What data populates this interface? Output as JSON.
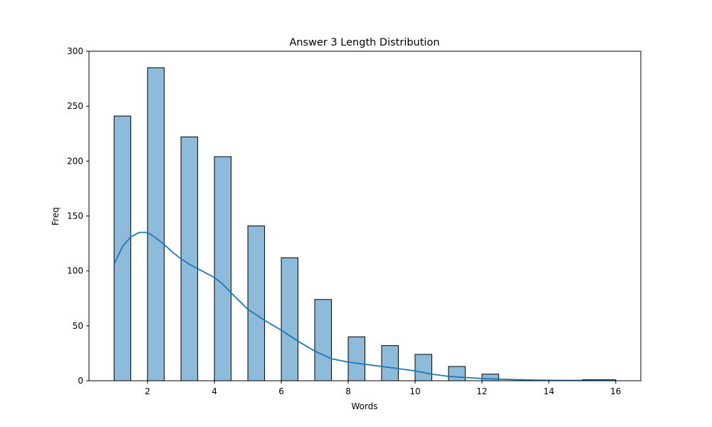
{
  "chart_data": {
    "type": "bar",
    "title": "Answer 3 Length Distribution",
    "xlabel": "Words",
    "ylabel": "Freq",
    "xlim": [
      0.25,
      16.75
    ],
    "ylim": [
      0,
      300
    ],
    "xticks": [
      2,
      4,
      6,
      8,
      10,
      12,
      14,
      16
    ],
    "yticks": [
      0,
      50,
      100,
      150,
      200,
      250,
      300
    ],
    "grid": false,
    "bin_width": 0.5,
    "bins": [
      {
        "start": 1.0,
        "value": 241
      },
      {
        "start": 2.0,
        "value": 285
      },
      {
        "start": 3.0,
        "value": 222
      },
      {
        "start": 4.0,
        "value": 204
      },
      {
        "start": 5.0,
        "value": 141
      },
      {
        "start": 6.0,
        "value": 112
      },
      {
        "start": 7.0,
        "value": 74
      },
      {
        "start": 8.0,
        "value": 40
      },
      {
        "start": 9.0,
        "value": 32
      },
      {
        "start": 10.0,
        "value": 24
      },
      {
        "start": 11.0,
        "value": 13
      },
      {
        "start": 12.0,
        "value": 6
      },
      {
        "start": 13.0,
        "value": 1
      },
      {
        "start": 15.0,
        "value": 1
      },
      {
        "start": 15.5,
        "value": 1
      }
    ],
    "kde": {
      "x": [
        1,
        1.25,
        1.5,
        1.75,
        2,
        2.25,
        2.5,
        2.75,
        3,
        3.25,
        3.5,
        3.75,
        4,
        4.25,
        4.5,
        5,
        5.5,
        6,
        6.5,
        7,
        7.5,
        8,
        8.5,
        9,
        9.5,
        10,
        10.5,
        11,
        11.5,
        12,
        12.5,
        13,
        13.5,
        14,
        14.5,
        15,
        15.5,
        16
      ],
      "y": [
        106,
        122,
        131,
        135,
        135,
        130,
        124,
        117,
        111,
        106,
        102,
        98,
        94,
        88,
        80,
        65,
        55,
        46,
        36,
        27,
        20,
        17,
        15,
        13,
        11,
        9,
        6,
        4,
        3,
        2,
        1.5,
        1,
        0.6,
        0.4,
        0.3,
        0.3,
        0.3,
        0.4
      ]
    },
    "colors": {
      "bar_fill": "#8fbbdb",
      "bar_edge": "#000000",
      "kde_line": "#1f77b4"
    }
  }
}
